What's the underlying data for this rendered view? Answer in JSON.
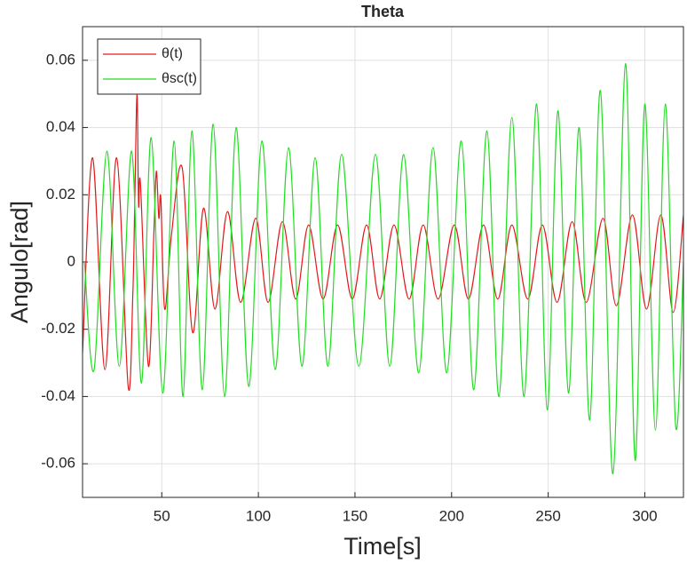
{
  "chart_data": {
    "type": "line",
    "title": "Theta",
    "x_label": "Time[s]",
    "y_label": "Angulo[rad]",
    "xlim": [
      9,
      320
    ],
    "ylim": [
      -0.07,
      0.07
    ],
    "xticks": [
      50,
      100,
      150,
      200,
      250,
      300
    ],
    "yticks": [
      -0.06,
      -0.04,
      -0.02,
      0,
      0.02,
      0.04,
      0.06
    ],
    "grid": true,
    "legend": "upper left",
    "series": [
      {
        "name": "θ(t)",
        "color": "#e31a1c",
        "x": [
          9,
          14.2,
          20.6,
          26.6,
          32.6,
          35,
          36,
          37.2,
          38,
          39,
          43.1,
          46,
          47.2,
          48.5,
          49.5,
          51.5,
          55,
          60.6,
          66,
          71.6,
          77.5,
          84,
          90.8,
          98.6,
          105,
          112.4,
          119.3,
          126,
          133.5,
          141,
          148.6,
          156,
          162.8,
          170.2,
          178,
          185.3,
          193,
          201.4,
          208.7,
          216.5,
          223.9,
          231.2,
          239.4,
          247,
          254.6,
          262.4,
          269.7,
          278.4,
          285.3,
          293.6,
          300.9,
          308.3,
          314.7,
          320
        ],
        "values": [
          -0.027,
          0.031,
          -0.032,
          0.031,
          -0.037,
          -0.01,
          0.017,
          0.05,
          0.017,
          0.023,
          -0.031,
          0.01,
          0.027,
          0.013,
          0.019,
          -0.014,
          0.008,
          0.028,
          -0.021,
          0.016,
          -0.014,
          0.015,
          -0.012,
          0.013,
          -0.012,
          0.012,
          -0.011,
          0.011,
          -0.011,
          0.011,
          -0.011,
          0.011,
          -0.011,
          0.011,
          -0.011,
          0.011,
          -0.011,
          0.011,
          -0.011,
          0.011,
          -0.011,
          0.011,
          -0.011,
          0.011,
          -0.012,
          0.012,
          -0.012,
          0.013,
          -0.013,
          0.014,
          -0.014,
          0.014,
          -0.015,
          0.014
        ]
      },
      {
        "name": "θsc(t)",
        "color": "#22dd22",
        "x": [
          10,
          15,
          21.6,
          28,
          34.4,
          39.5,
          44.5,
          50.5,
          56.4,
          61,
          65.6,
          71,
          76.6,
          82.5,
          88.5,
          95,
          101.8,
          108.7,
          115.6,
          122.5,
          129.4,
          136,
          143.1,
          152,
          160.6,
          168,
          175.2,
          183,
          190.4,
          197.5,
          205,
          211.5,
          218.3,
          224.5,
          231.2,
          237.5,
          244,
          249.5,
          255,
          260.5,
          266,
          271.5,
          277,
          283.5,
          290,
          295,
          300,
          305.5,
          310.6,
          316,
          320
        ],
        "values": [
          0,
          -0.032,
          0.033,
          -0.031,
          0.033,
          -0.036,
          0.037,
          -0.039,
          0.036,
          -0.04,
          0.039,
          -0.038,
          0.041,
          -0.04,
          0.04,
          -0.037,
          0.036,
          -0.032,
          0.034,
          -0.031,
          0.031,
          -0.031,
          0.032,
          -0.031,
          0.032,
          -0.031,
          0.032,
          -0.033,
          0.034,
          -0.033,
          0.036,
          -0.038,
          0.039,
          -0.04,
          0.043,
          -0.04,
          0.047,
          -0.044,
          0.045,
          -0.039,
          0.04,
          -0.047,
          0.051,
          -0.063,
          0.059,
          -0.059,
          0.047,
          -0.05,
          0.047,
          -0.049,
          0
        ]
      }
    ]
  }
}
